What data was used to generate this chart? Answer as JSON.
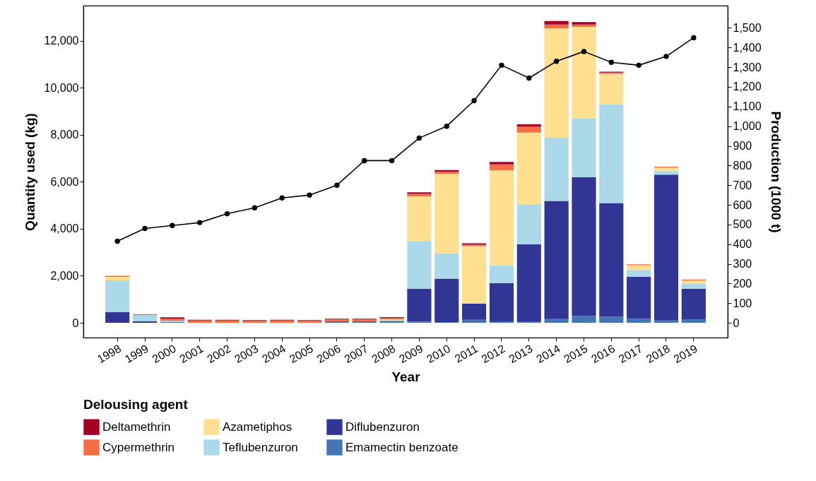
{
  "chart_data": {
    "type": "bar",
    "stacked": true,
    "xlabel": "Year",
    "ylabel": "Quantity used (kg)",
    "y2label": "Production (1000 t)",
    "legend_title": "Delousing agent",
    "legend": "bottom",
    "marker": "circle",
    "categories": [
      "1998",
      "1999",
      "2000",
      "2001",
      "2002",
      "2003",
      "2004",
      "2005",
      "2006",
      "2007",
      "2008",
      "2009",
      "2010",
      "2011",
      "2012",
      "2013",
      "2014",
      "2015",
      "2016",
      "2017",
      "2018",
      "2019"
    ],
    "ylim": [
      -630,
      13490
    ],
    "yticks": [
      0,
      {
        "value": 2000,
        "label": "2,000"
      },
      {
        "value": 4000,
        "label": "4,000"
      },
      {
        "value": 6000,
        "label": "6,000"
      },
      {
        "value": 8000,
        "label": "8,000"
      },
      {
        "value": 10000,
        "label": "10,000"
      },
      {
        "value": 12000,
        "label": "12,000"
      }
    ],
    "y2lim": [
      -75,
      1613
    ],
    "y2ticks": [
      0,
      100,
      200,
      300,
      400,
      500,
      600,
      700,
      800,
      900,
      {
        "value": 1000,
        "label": "1,000"
      },
      {
        "value": 1100,
        "label": "1,100"
      },
      {
        "value": 1200,
        "label": "1,200"
      },
      {
        "value": 1300,
        "label": "1,300"
      },
      {
        "value": 1400,
        "label": "1,400"
      },
      {
        "value": 1500,
        "label": "1,500"
      }
    ],
    "series": [
      {
        "name": "Emamectin benzoate",
        "color": "#4575b4",
        "values": [
          0,
          0,
          30,
          0,
          0,
          0,
          0,
          0,
          60,
          60,
          80,
          50,
          30,
          130,
          40,
          60,
          180,
          290,
          260,
          170,
          100,
          150
        ]
      },
      {
        "name": "Diflubenzuron",
        "color": "#313695",
        "values": [
          450,
          60,
          0,
          0,
          0,
          0,
          0,
          0,
          0,
          0,
          0,
          1400,
          1850,
          690,
          1650,
          3280,
          5000,
          5900,
          4830,
          1780,
          6200,
          1300
        ]
      },
      {
        "name": "Teflubenzuron",
        "color": "#abd9e9",
        "values": [
          1350,
          270,
          50,
          null,
          0,
          0,
          0,
          0,
          0,
          0,
          null,
          2030,
          1080,
          null,
          750,
          1700,
          2700,
          2500,
          4200,
          300,
          150,
          200
        ]
      },
      {
        "name": "Azametiphos",
        "color": "#fee090",
        "values": [
          150,
          0,
          0,
          0,
          0,
          0,
          0,
          0,
          0,
          0,
          60,
          1900,
          3370,
          2440,
          4050,
          3050,
          4640,
          3900,
          1300,
          200,
          150,
          150
        ]
      },
      {
        "name": "Cypermethrin",
        "color": "#f46d43",
        "values": [
          50,
          40,
          100,
          100,
          100,
          80,
          100,
          80,
          80,
          80,
          60,
          100,
          100,
          60,
          250,
          250,
          170,
          100,
          50,
          40,
          40,
          40
        ]
      },
      {
        "name": "Deltamethrin",
        "color": "#a50026",
        "values": [
          0,
          0,
          50,
          30,
          30,
          30,
          30,
          30,
          30,
          30,
          40,
          70,
          70,
          60,
          100,
          100,
          150,
          100,
          40,
          0,
          0,
          0
        ]
      },
      {
        "type": "line",
        "axis": "y2",
        "color": "#000000",
        "values": [
          415,
          480,
          495,
          510,
          555,
          585,
          635,
          650,
          700,
          825,
          825,
          940,
          1000,
          1130,
          1310,
          1245,
          1330,
          1380,
          1325,
          1310,
          1355,
          1450
        ]
      }
    ]
  }
}
